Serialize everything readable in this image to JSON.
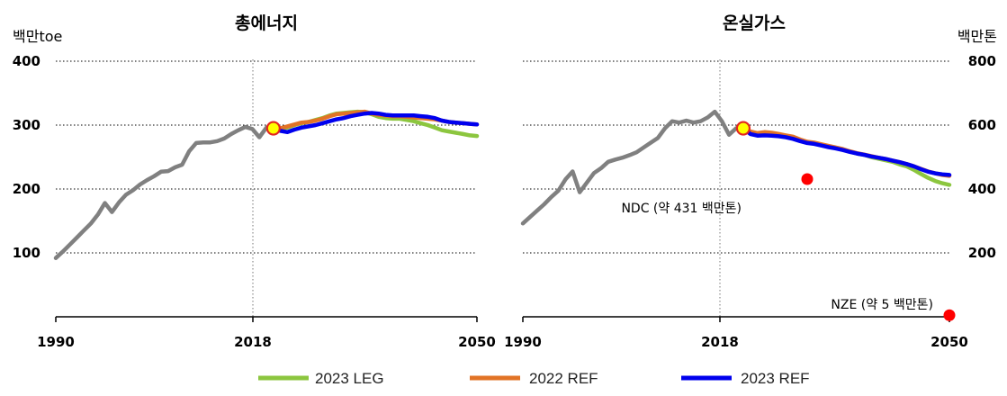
{
  "chart_data": [
    {
      "type": "line",
      "title": "총에너지",
      "unit": "백만toe",
      "ylim": [
        0,
        400
      ],
      "yticks": [
        "100",
        "200",
        "300",
        "400"
      ],
      "xlim": [
        1990,
        2050
      ],
      "xticks": [
        "1990",
        "2018",
        "2050"
      ],
      "marker": {
        "x": 2021,
        "y": 295
      },
      "series": [
        {
          "name": "2023 LEG",
          "color": "#8cc63f",
          "x": [
            2021,
            2022,
            2023,
            2024,
            2025,
            2026,
            2027,
            2028,
            2029,
            2030,
            2031,
            2032,
            2033,
            2034,
            2035,
            2036,
            2037,
            2038,
            2039,
            2040,
            2041,
            2042,
            2043,
            2044,
            2045,
            2046,
            2047,
            2048,
            2049,
            2050
          ],
          "y": [
            295,
            294,
            296,
            300,
            303,
            305,
            308,
            311,
            315,
            318,
            319,
            320,
            321,
            320,
            317,
            313,
            311,
            310,
            310,
            308,
            306,
            303,
            300,
            296,
            292,
            290,
            288,
            286,
            284,
            283
          ]
        },
        {
          "name": "2022 REF",
          "color": "#e27326",
          "x": [
            2021,
            2022,
            2023,
            2024,
            2025,
            2026,
            2027,
            2028,
            2029,
            2030,
            2031,
            2032,
            2033,
            2034,
            2035,
            2036,
            2037,
            2038,
            2039,
            2040,
            2041,
            2042,
            2043,
            2044,
            2045,
            2046,
            2047,
            2048,
            2049,
            2050
          ],
          "y": [
            295,
            295,
            298,
            301,
            304,
            305,
            307,
            310,
            314,
            317,
            318,
            319,
            320,
            321,
            318,
            316,
            315,
            314,
            314,
            313,
            312,
            311,
            310,
            309,
            307,
            305,
            304,
            303,
            302,
            301
          ]
        },
        {
          "name": "2023 REF",
          "color": "#0000ee",
          "x": [
            2021,
            2022,
            2023,
            2024,
            2025,
            2026,
            2027,
            2028,
            2029,
            2030,
            2031,
            2032,
            2033,
            2034,
            2035,
            2036,
            2037,
            2038,
            2039,
            2040,
            2041,
            2042,
            2043,
            2044,
            2045,
            2046,
            2047,
            2048,
            2049,
            2050
          ],
          "y": [
            293,
            291,
            289,
            293,
            296,
            298,
            300,
            303,
            306,
            309,
            311,
            314,
            316,
            318,
            319,
            318,
            316,
            315,
            315,
            315,
            315,
            314,
            313,
            311,
            307,
            305,
            304,
            303,
            302,
            301
          ]
        },
        {
          "name": "",
          "color": "#808080",
          "x": [
            1990,
            1991,
            1992,
            1993,
            1994,
            1995,
            1996,
            1997,
            1998,
            1999,
            2000,
            2001,
            2002,
            2003,
            2004,
            2005,
            2006,
            2007,
            2008,
            2009,
            2010,
            2011,
            2012,
            2013,
            2014,
            2015,
            2016,
            2017,
            2018,
            2019,
            2020,
            2021
          ],
          "y": [
            92,
            102,
            113,
            124,
            135,
            146,
            160,
            178,
            164,
            179,
            191,
            198,
            207,
            214,
            220,
            227,
            228,
            234,
            238,
            259,
            272,
            273,
            273,
            275,
            279,
            286,
            292,
            297,
            294,
            281,
            296,
            295
          ]
        }
      ]
    },
    {
      "type": "line",
      "title": "온실가스",
      "unit": "백만톤",
      "ylim": [
        0,
        800
      ],
      "yticks": [
        "200",
        "400",
        "600",
        "800"
      ],
      "xlim": [
        1990,
        2050
      ],
      "xticks": [
        "1990",
        "2018",
        "2050"
      ],
      "marker": {
        "x": 2021,
        "y": 590
      },
      "points": [
        {
          "x": 2030,
          "y": 431,
          "label": "NDC (약 431 백만톤)"
        },
        {
          "x": 2050,
          "y": 5,
          "label": "NZE (약 5 백만톤)"
        }
      ],
      "series": [
        {
          "name": "2023 LEG",
          "color": "#8cc63f",
          "x": [
            2021,
            2022,
            2023,
            2024,
            2025,
            2026,
            2027,
            2028,
            2029,
            2030,
            2031,
            2032,
            2033,
            2034,
            2035,
            2036,
            2037,
            2038,
            2039,
            2040,
            2041,
            2042,
            2043,
            2044,
            2045,
            2046,
            2047,
            2048,
            2049,
            2050
          ],
          "y": [
            590,
            575,
            572,
            571,
            572,
            570,
            566,
            561,
            552,
            547,
            544,
            538,
            532,
            528,
            523,
            517,
            511,
            507,
            500,
            495,
            490,
            485,
            477,
            471,
            460,
            447,
            435,
            425,
            418,
            413
          ]
        },
        {
          "name": "2022 REF",
          "color": "#e27326",
          "x": [
            2021,
            2022,
            2023,
            2024,
            2025,
            2026,
            2027,
            2028,
            2029,
            2030,
            2031,
            2032,
            2033,
            2034,
            2035,
            2036,
            2037,
            2038,
            2039,
            2040,
            2041,
            2042,
            2043,
            2044,
            2045,
            2046,
            2047,
            2048,
            2049,
            2050
          ],
          "y": [
            590,
            580,
            575,
            578,
            576,
            572,
            568,
            564,
            555,
            548,
            545,
            540,
            535,
            530,
            525,
            518,
            512,
            508,
            503,
            498,
            494,
            489,
            484,
            478,
            471,
            463,
            455,
            449,
            444,
            441
          ]
        },
        {
          "name": "2023 REF",
          "color": "#0000ee",
          "x": [
            2021,
            2022,
            2023,
            2024,
            2025,
            2026,
            2027,
            2028,
            2029,
            2030,
            2031,
            2032,
            2033,
            2034,
            2035,
            2036,
            2037,
            2038,
            2039,
            2040,
            2041,
            2042,
            2043,
            2044,
            2045,
            2046,
            2047,
            2048,
            2049,
            2050
          ],
          "y": [
            590,
            572,
            567,
            568,
            567,
            565,
            562,
            557,
            550,
            544,
            541,
            536,
            531,
            527,
            522,
            516,
            511,
            507,
            502,
            498,
            494,
            489,
            484,
            478,
            471,
            462,
            454,
            449,
            446,
            444
          ]
        },
        {
          "name": "",
          "color": "#808080",
          "x": [
            1990,
            1991,
            1992,
            1993,
            1994,
            1995,
            1996,
            1997,
            1998,
            1999,
            2000,
            2001,
            2002,
            2003,
            2004,
            2005,
            2006,
            2007,
            2008,
            2009,
            2010,
            2011,
            2012,
            2013,
            2014,
            2015,
            2016,
            2017,
            2018,
            2019,
            2020,
            2021
          ],
          "y": [
            292,
            312,
            332,
            352,
            375,
            395,
            430,
            455,
            390,
            420,
            450,
            465,
            485,
            492,
            498,
            506,
            515,
            530,
            545,
            560,
            590,
            612,
            608,
            614,
            608,
            612,
            624,
            642,
            612,
            570,
            590,
            590
          ]
        }
      ]
    }
  ]
}
